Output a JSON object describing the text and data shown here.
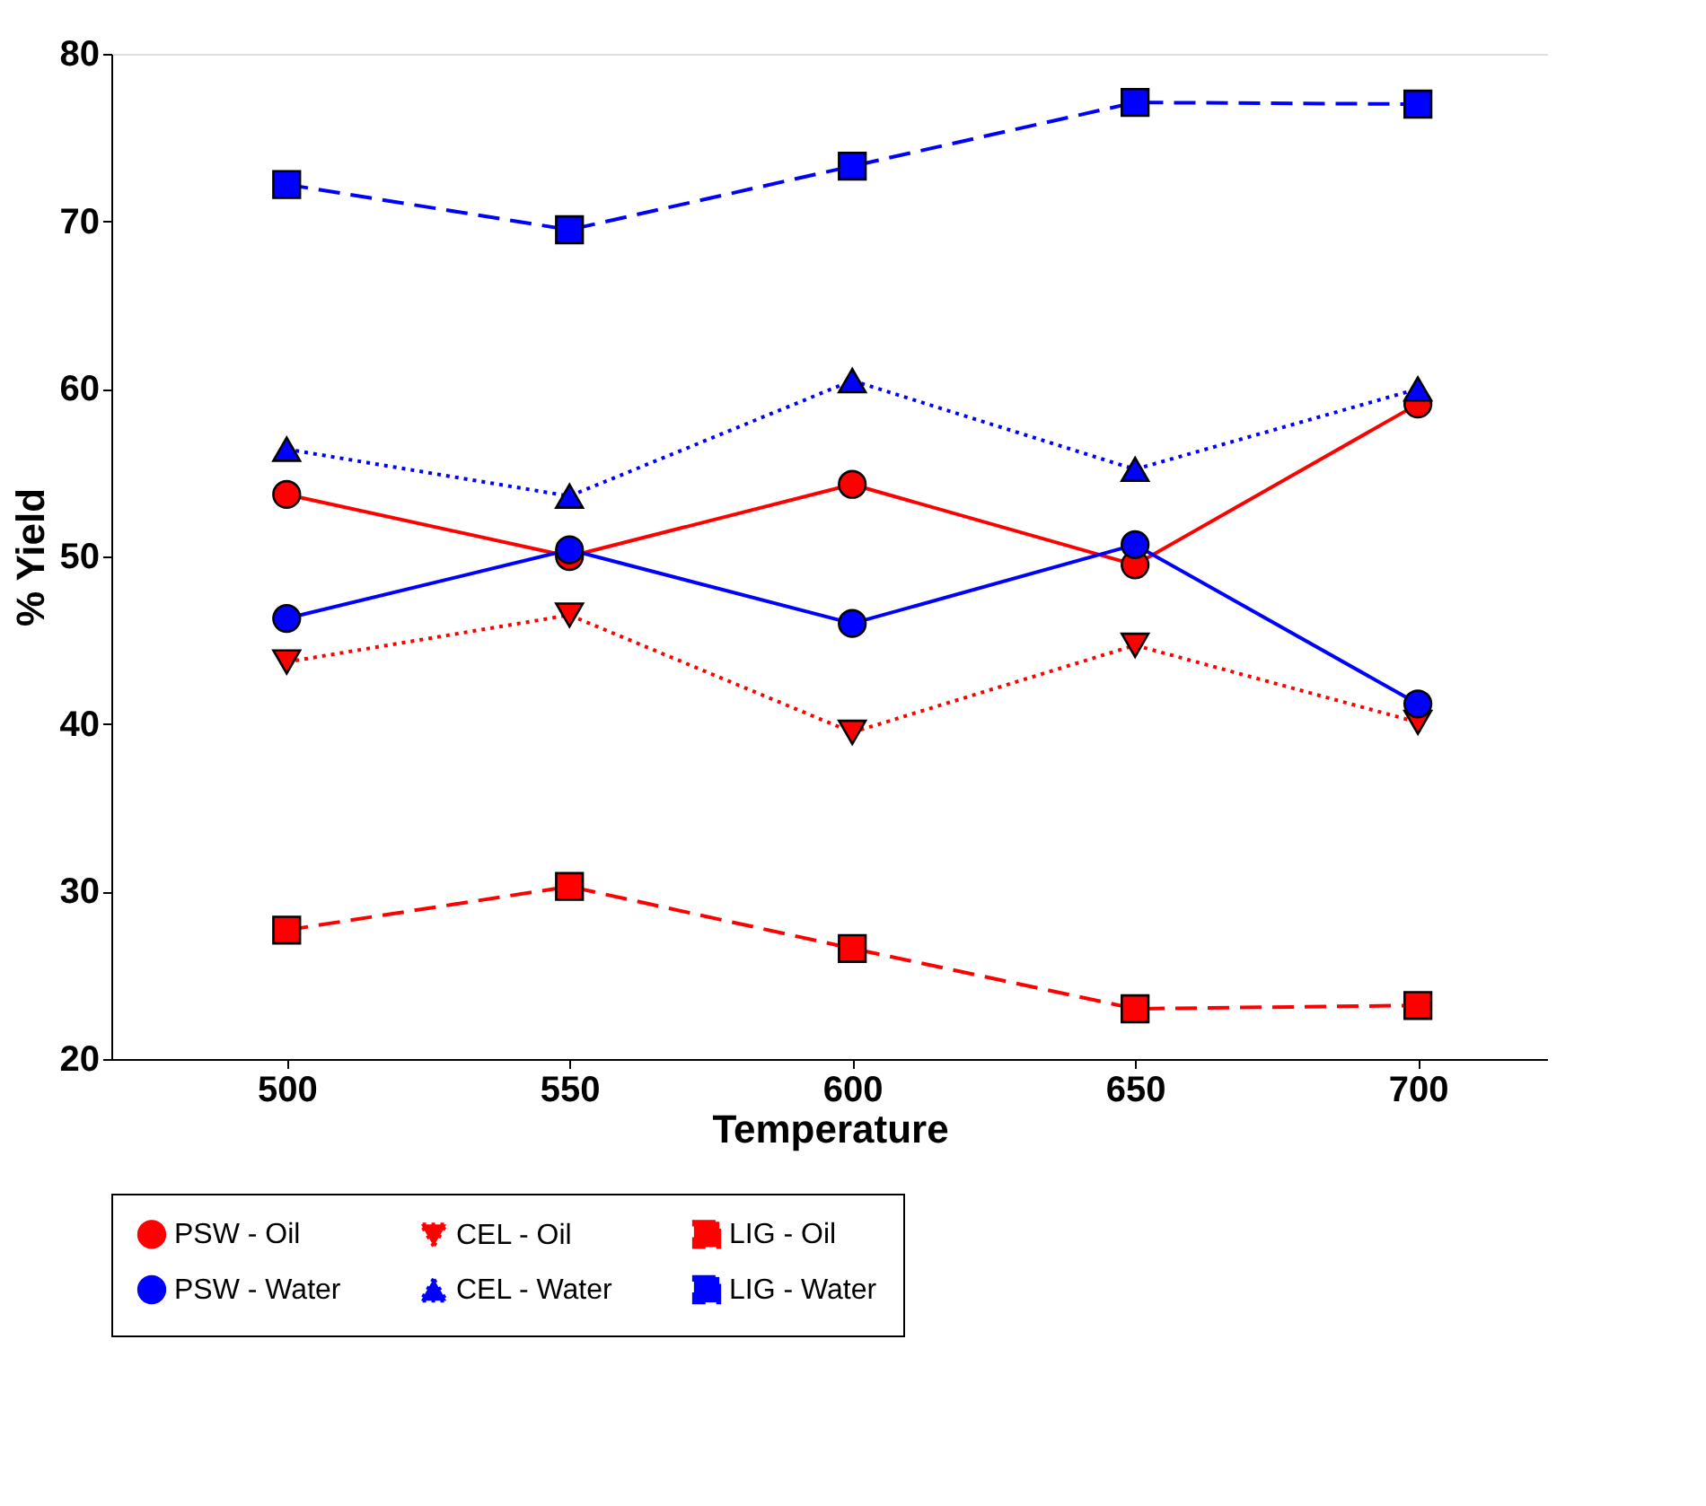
{
  "chart_data": {
    "type": "line",
    "xlabel": "Temperature",
    "ylabel": "% Yield",
    "x": [
      500,
      550,
      600,
      650,
      700
    ],
    "xlim": [
      469,
      723
    ],
    "xticks": [
      500,
      550,
      600,
      650,
      700
    ],
    "ylim": [
      20,
      80
    ],
    "yticks": [
      20,
      30,
      40,
      50,
      60,
      70,
      80
    ],
    "grid": false,
    "legend": "bottom",
    "series": [
      {
        "name": "PSW - Oil",
        "color": "#ff0000",
        "line_style": "solid",
        "marker": "circle",
        "values": [
          53.7,
          50.0,
          54.3,
          49.5,
          59.1
        ]
      },
      {
        "name": "CEL - Oil",
        "color": "#ff0000",
        "line_style": "dotted",
        "marker": "triangle",
        "values": [
          43.7,
          46.5,
          39.5,
          44.7,
          40.1
        ]
      },
      {
        "name": "LIG - Oil",
        "color": "#ff0000",
        "line_style": "dashed",
        "marker": "square",
        "values": [
          27.7,
          30.3,
          26.6,
          23.0,
          23.2
        ]
      },
      {
        "name": "PSW - Water",
        "color": "#0000ff",
        "line_style": "solid",
        "marker": "circle",
        "values": [
          46.3,
          50.4,
          46.0,
          50.7,
          41.2
        ]
      },
      {
        "name": "CEL - Water",
        "color": "#0000ff",
        "line_style": "dotted",
        "marker": "triangle-up",
        "values": [
          56.4,
          53.6,
          60.5,
          55.2,
          60.0
        ]
      },
      {
        "name": "LIG - Water",
        "color": "#0000ff",
        "line_style": "dashed",
        "marker": "square",
        "values": [
          72.2,
          69.5,
          73.3,
          77.1,
          77.0
        ]
      }
    ]
  }
}
